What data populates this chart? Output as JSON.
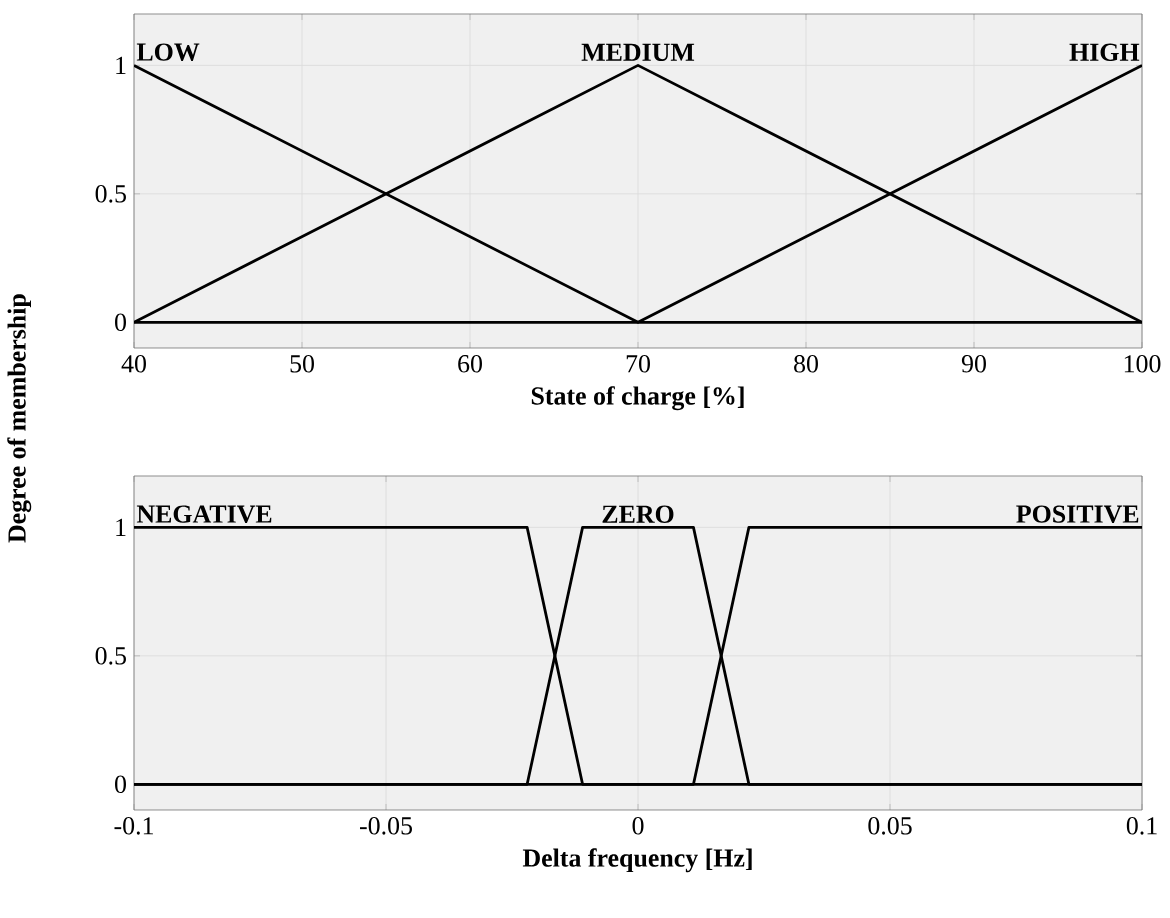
{
  "chart_data": [
    {
      "type": "line",
      "xlabel": "State of charge [%]",
      "ylabel": "Degree of membership",
      "xlim": [
        40,
        100
      ],
      "ylim": [
        -0.1,
        1.2
      ],
      "xticks": [
        40,
        50,
        60,
        70,
        80,
        90,
        100
      ],
      "yticks": [
        0,
        0.5,
        1
      ],
      "grid": true,
      "series": [
        {
          "name": "LOW",
          "color": "#000000",
          "x": [
            40,
            70,
            100
          ],
          "values": [
            1,
            0,
            0
          ]
        },
        {
          "name": "MEDIUM",
          "color": "#000000",
          "x": [
            40,
            70,
            100
          ],
          "values": [
            0,
            1,
            0
          ]
        },
        {
          "name": "HIGH",
          "color": "#000000",
          "x": [
            40,
            70,
            100
          ],
          "values": [
            0,
            0,
            1
          ]
        }
      ]
    },
    {
      "type": "line",
      "xlabel": "Delta frequency [Hz]",
      "xlim": [
        -0.1,
        0.1
      ],
      "ylim": [
        -0.1,
        1.2
      ],
      "xticks": [
        -0.1,
        -0.05,
        0,
        0.05,
        0.1
      ],
      "yticks": [
        0,
        0.5,
        1
      ],
      "grid": true,
      "series": [
        {
          "name": "NEGATIVE",
          "color": "#000000",
          "x": [
            -0.1,
            -0.022,
            -0.011,
            0.1
          ],
          "values": [
            1,
            1,
            0,
            0
          ]
        },
        {
          "name": "ZERO",
          "color": "#000000",
          "x": [
            -0.1,
            -0.022,
            -0.011,
            0.011,
            0.022,
            0.1
          ],
          "values": [
            0,
            0,
            1,
            1,
            0,
            0
          ]
        },
        {
          "name": "POSITIVE",
          "color": "#000000",
          "x": [
            -0.1,
            0.011,
            0.022,
            0.1
          ],
          "values": [
            0,
            0,
            1,
            1
          ]
        }
      ]
    }
  ]
}
